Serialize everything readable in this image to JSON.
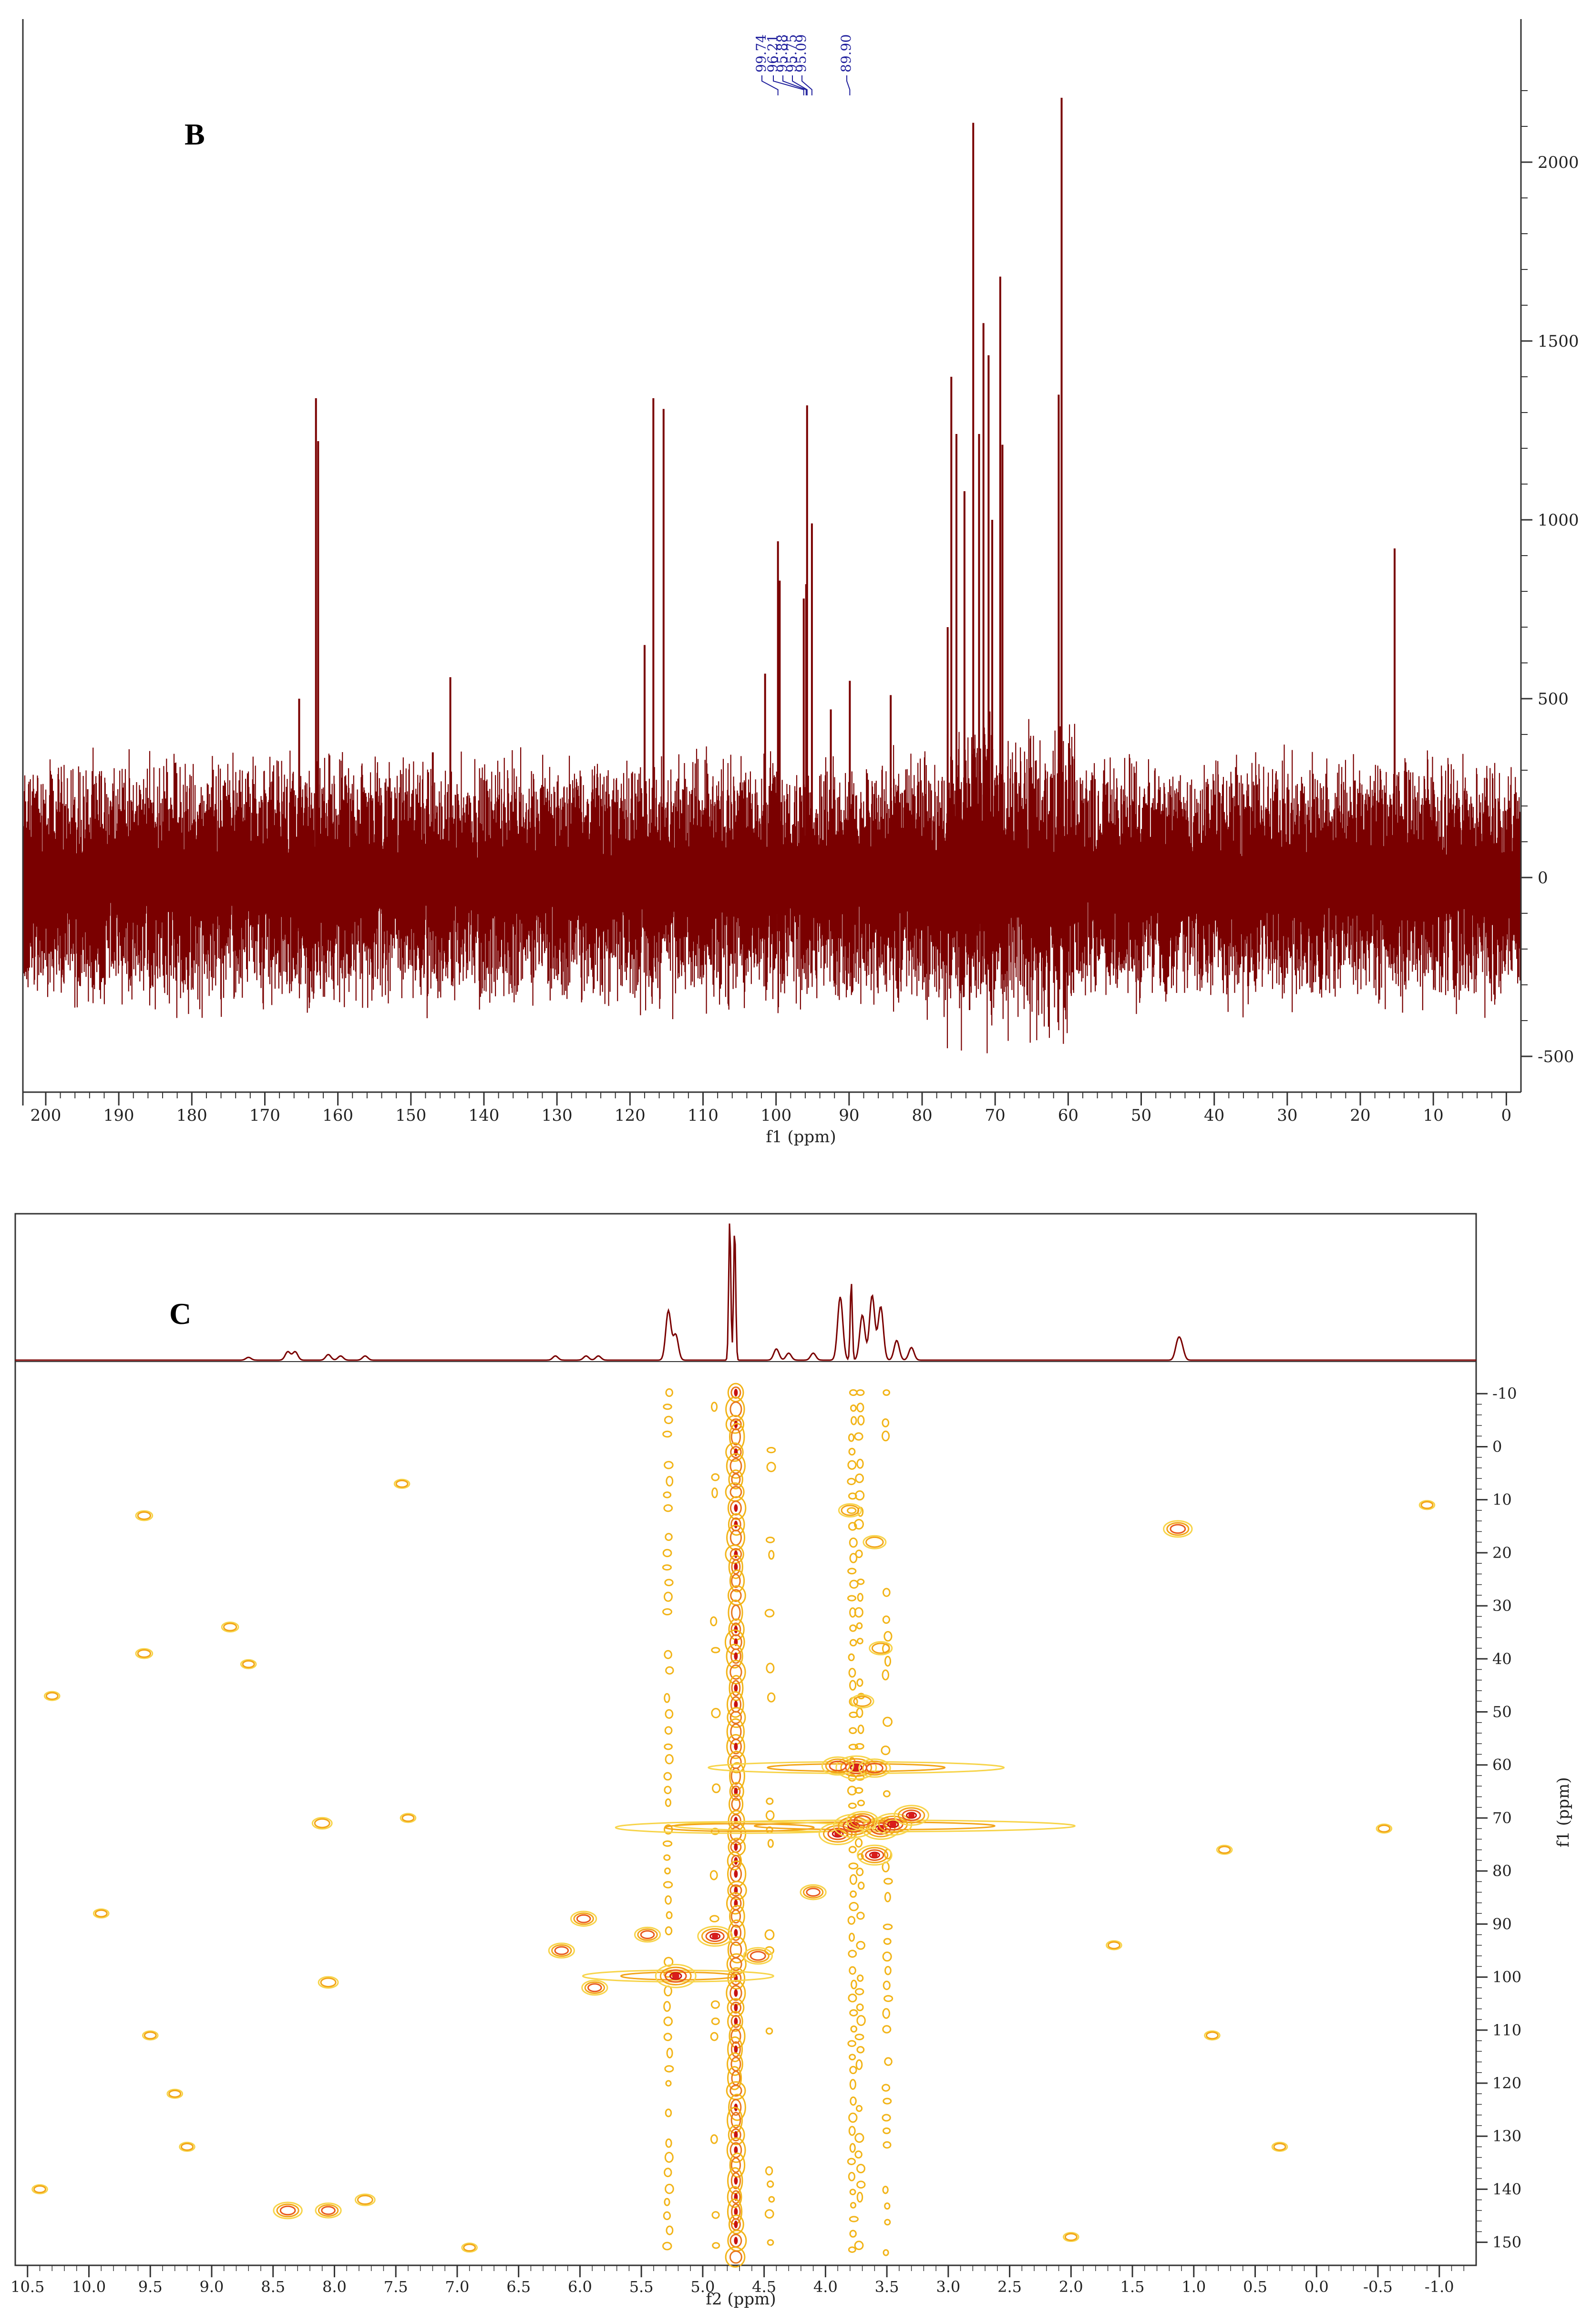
{
  "chart_data": [
    {
      "type": "line",
      "panel_label": "B",
      "xlabel": "f1 (ppm)",
      "ylabel": "",
      "xlim": [
        203,
        -2
      ],
      "ylim": [
        -600,
        2400
      ],
      "x_ticks": [
        "200",
        "190",
        "180",
        "170",
        "160",
        "150",
        "140",
        "130",
        "120",
        "110",
        "100",
        "90",
        "80",
        "70",
        "60",
        "50",
        "40",
        "30",
        "20",
        "10",
        "0"
      ],
      "y_ticks": [
        "-500",
        "0",
        "500",
        "1000",
        "1500",
        "2000"
      ],
      "peak_labels": [
        "99.74",
        "96.21",
        "95.88",
        "95.75",
        "95.09",
        "89.90"
      ],
      "noise_amplitude": 300,
      "peaks": [
        {
          "x": 163.0,
          "y": 1340
        },
        {
          "x": 162.7,
          "y": 1220
        },
        {
          "x": 165.3,
          "y": 500
        },
        {
          "x": 147.0,
          "y": 350
        },
        {
          "x": 144.6,
          "y": 560
        },
        {
          "x": 118.0,
          "y": 650
        },
        {
          "x": 116.8,
          "y": 1340
        },
        {
          "x": 115.4,
          "y": 1310
        },
        {
          "x": 101.5,
          "y": 570
        },
        {
          "x": 99.74,
          "y": 940
        },
        {
          "x": 99.5,
          "y": 830
        },
        {
          "x": 96.21,
          "y": 780
        },
        {
          "x": 95.88,
          "y": 820
        },
        {
          "x": 95.75,
          "y": 1320
        },
        {
          "x": 95.09,
          "y": 990
        },
        {
          "x": 92.5,
          "y": 470
        },
        {
          "x": 89.9,
          "y": 550
        },
        {
          "x": 84.3,
          "y": 510
        },
        {
          "x": 76.5,
          "y": 700
        },
        {
          "x": 76.0,
          "y": 1400
        },
        {
          "x": 75.3,
          "y": 1240
        },
        {
          "x": 74.2,
          "y": 1080
        },
        {
          "x": 73.0,
          "y": 2110
        },
        {
          "x": 72.2,
          "y": 1240
        },
        {
          "x": 71.6,
          "y": 1550
        },
        {
          "x": 70.9,
          "y": 1460
        },
        {
          "x": 70.4,
          "y": 1000
        },
        {
          "x": 69.3,
          "y": 1680
        },
        {
          "x": 69.0,
          "y": 1210
        },
        {
          "x": 60.9,
          "y": 2180
        },
        {
          "x": 61.3,
          "y": 1350
        },
        {
          "x": 15.3,
          "y": 920
        }
      ]
    },
    {
      "type": "heatmap",
      "panel_label": "C",
      "xlabel": "f2 (ppm)",
      "ylabel": "f1 (ppm)",
      "xlim": [
        10.6,
        -1.3
      ],
      "ylim": [
        -12,
        153
      ],
      "x_ticks": [
        "10.5",
        "10.0",
        "9.5",
        "9.0",
        "8.5",
        "8.0",
        "7.5",
        "7.0",
        "6.5",
        "6.0",
        "5.5",
        "5.0",
        "4.5",
        "4.0",
        "3.5",
        "3.0",
        "2.5",
        "2.0",
        "1.5",
        "1.0",
        "0.5",
        "0.0",
        "-0.5",
        "-1.0"
      ],
      "y_ticks": [
        "-10",
        "0",
        "10",
        "20",
        "30",
        "40",
        "50",
        "60",
        "70",
        "80",
        "90",
        "100",
        "110",
        "120",
        "130",
        "140",
        "150"
      ],
      "projection_peaks": [
        {
          "x": 4.78,
          "y": 1.0
        },
        {
          "x": 4.74,
          "y": 0.95
        },
        {
          "x": 5.28,
          "y": 0.35
        },
        {
          "x": 5.22,
          "y": 0.18
        },
        {
          "x": 3.79,
          "y": 0.56
        },
        {
          "x": 3.88,
          "y": 0.45
        },
        {
          "x": 3.62,
          "y": 0.46
        },
        {
          "x": 3.55,
          "y": 0.38
        },
        {
          "x": 3.7,
          "y": 0.32
        },
        {
          "x": 3.42,
          "y": 0.14
        },
        {
          "x": 3.3,
          "y": 0.09
        },
        {
          "x": 4.4,
          "y": 0.08
        },
        {
          "x": 4.3,
          "y": 0.05
        },
        {
          "x": 4.1,
          "y": 0.05
        },
        {
          "x": 1.13,
          "y": 0.12
        },
        {
          "x": 1.1,
          "y": 0.09
        },
        {
          "x": 8.38,
          "y": 0.06
        },
        {
          "x": 8.32,
          "y": 0.06
        },
        {
          "x": 8.05,
          "y": 0.04
        },
        {
          "x": 7.95,
          "y": 0.03
        },
        {
          "x": 7.75,
          "y": 0.03
        },
        {
          "x": 6.2,
          "y": 0.03
        },
        {
          "x": 5.95,
          "y": 0.03
        },
        {
          "x": 5.85,
          "y": 0.03
        },
        {
          "x": 8.7,
          "y": 0.02
        }
      ],
      "cross_peaks": [
        {
          "x": 5.22,
          "y": 99.8,
          "i": 1.0
        },
        {
          "x": 4.9,
          "y": 92.3,
          "i": 0.8
        },
        {
          "x": 4.55,
          "y": 96.0,
          "i": 0.6
        },
        {
          "x": 5.45,
          "y": 92.0,
          "i": 0.5
        },
        {
          "x": 3.75,
          "y": 60.5,
          "i": 1.0
        },
        {
          "x": 3.9,
          "y": 60.2,
          "i": 0.7
        },
        {
          "x": 3.6,
          "y": 60.6,
          "i": 0.7
        },
        {
          "x": 3.9,
          "y": 73.0,
          "i": 0.9
        },
        {
          "x": 3.77,
          "y": 71.5,
          "i": 1.0
        },
        {
          "x": 3.55,
          "y": 72.0,
          "i": 0.9
        },
        {
          "x": 3.45,
          "y": 71.2,
          "i": 0.9
        },
        {
          "x": 3.3,
          "y": 69.5,
          "i": 0.8
        },
        {
          "x": 3.6,
          "y": 77.0,
          "i": 0.8
        },
        {
          "x": 3.7,
          "y": 70.5,
          "i": 0.7
        },
        {
          "x": 4.1,
          "y": 84.0,
          "i": 0.5
        },
        {
          "x": 5.97,
          "y": 89.0,
          "i": 0.5
        },
        {
          "x": 6.15,
          "y": 95.0,
          "i": 0.5
        },
        {
          "x": 5.88,
          "y": 102.0,
          "i": 0.5
        },
        {
          "x": 1.13,
          "y": 15.5,
          "i": 0.6
        },
        {
          "x": 8.38,
          "y": 144.0,
          "i": 0.6
        },
        {
          "x": 8.05,
          "y": 144.0,
          "i": 0.5
        },
        {
          "x": 7.75,
          "y": 142.0,
          "i": 0.3
        },
        {
          "x": 8.05,
          "y": 101.0,
          "i": 0.3
        },
        {
          "x": 8.1,
          "y": 71.0,
          "i": 0.3
        },
        {
          "x": 3.8,
          "y": 12.0,
          "i": 0.4
        },
        {
          "x": 3.6,
          "y": 18.0,
          "i": 0.4
        },
        {
          "x": 3.7,
          "y": 48.0,
          "i": 0.4
        },
        {
          "x": 3.55,
          "y": 38.0,
          "i": 0.4
        },
        {
          "x": 9.55,
          "y": 13.0,
          "i": 0.2
        },
        {
          "x": 8.85,
          "y": 34.0,
          "i": 0.2
        },
        {
          "x": 9.55,
          "y": 39.0,
          "i": 0.2
        },
        {
          "x": 8.7,
          "y": 41.0,
          "i": 0.15
        },
        {
          "x": 10.3,
          "y": 47.0,
          "i": 0.15
        },
        {
          "x": 9.9,
          "y": 88.0,
          "i": 0.15
        },
        {
          "x": 9.5,
          "y": 111.0,
          "i": 0.15
        },
        {
          "x": 9.3,
          "y": 122.0,
          "i": 0.15
        },
        {
          "x": 9.2,
          "y": 132.0,
          "i": 0.15
        },
        {
          "x": 10.4,
          "y": 140.0,
          "i": 0.15
        },
        {
          "x": 7.45,
          "y": 7.0,
          "i": 0.15
        },
        {
          "x": 7.4,
          "y": 70.0,
          "i": 0.15
        },
        {
          "x": 6.9,
          "y": 151.0,
          "i": 0.15
        },
        {
          "x": 0.75,
          "y": 76.0,
          "i": 0.15
        },
        {
          "x": 0.85,
          "y": 111.0,
          "i": 0.15
        },
        {
          "x": 0.3,
          "y": 132.0,
          "i": 0.15
        },
        {
          "x": -0.9,
          "y": 11.0,
          "i": 0.15
        },
        {
          "x": -0.55,
          "y": 72.0,
          "i": 0.15
        },
        {
          "x": 1.65,
          "y": 94.0,
          "i": 0.15
        },
        {
          "x": 2.0,
          "y": 149.0,
          "i": 0.15
        }
      ],
      "t1_noise_columns": [
        {
          "x": 4.73,
          "i": 1.0
        },
        {
          "x": 5.28,
          "i": 0.35
        },
        {
          "x": 3.78,
          "i": 0.4
        },
        {
          "x": 3.72,
          "i": 0.3
        },
        {
          "x": 3.5,
          "i": 0.28
        },
        {
          "x": 4.45,
          "i": 0.12
        },
        {
          "x": 4.9,
          "i": 0.12
        }
      ]
    }
  ]
}
